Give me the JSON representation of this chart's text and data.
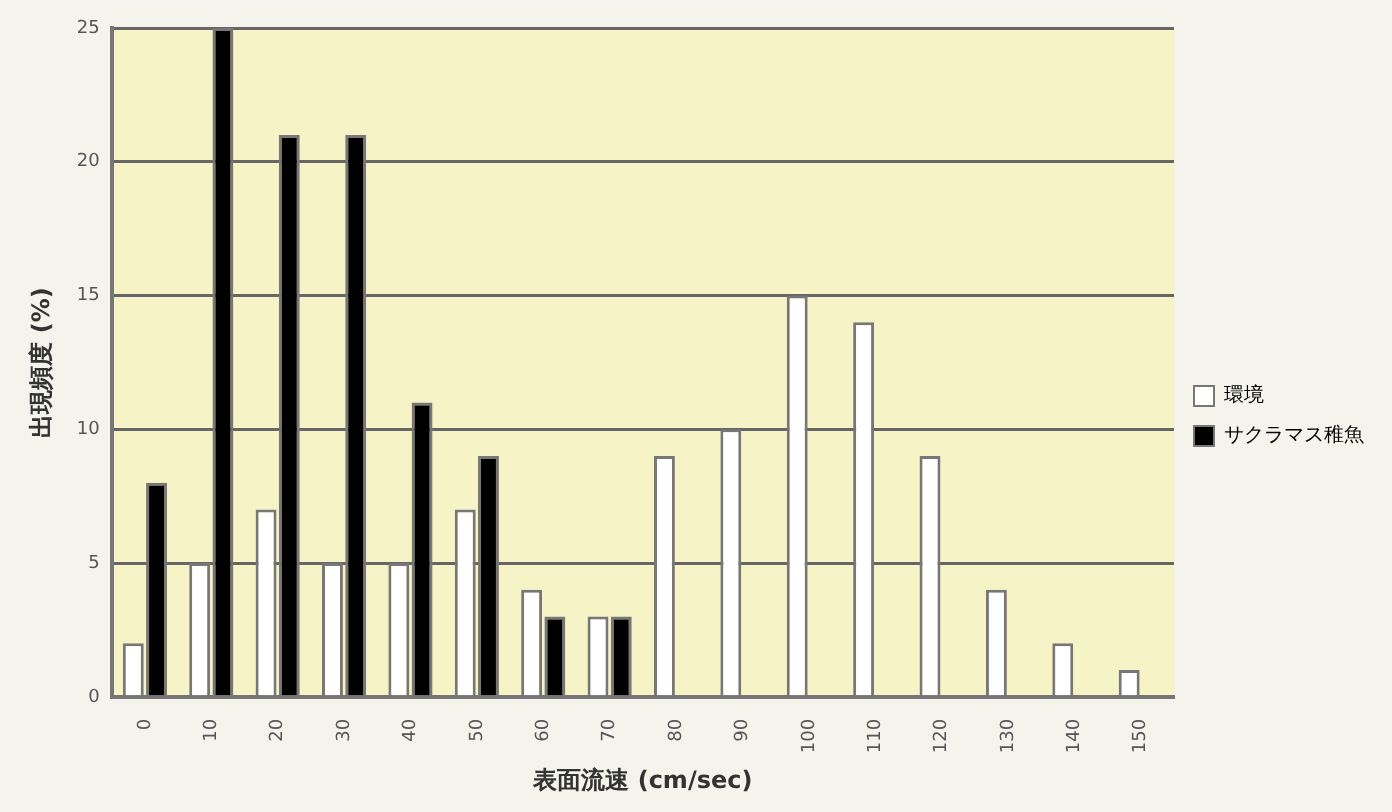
{
  "chart_data": {
    "type": "bar",
    "xlabel": "表面流速 (cm/sec)",
    "ylabel": "出現頻度 (%)",
    "categories": [
      "0",
      "10",
      "20",
      "30",
      "40",
      "50",
      "60",
      "70",
      "80",
      "90",
      "100",
      "110",
      "120",
      "130",
      "140",
      "150"
    ],
    "series": [
      {
        "name": "環境",
        "color": "#ffffff",
        "values": [
          2,
          5,
          7,
          5,
          5,
          7,
          4,
          3,
          9,
          10,
          15,
          14,
          9,
          4,
          2,
          1
        ]
      },
      {
        "name": "サクラマス稚魚",
        "color": "#000000",
        "values": [
          8,
          25,
          21,
          21,
          11,
          9,
          3,
          3,
          0,
          0,
          0,
          0,
          0,
          0,
          0,
          0
        ]
      }
    ],
    "ylim": [
      0,
      25
    ],
    "yticks": [
      0,
      5,
      10,
      15,
      20,
      25
    ],
    "grid": "y",
    "legend": "right"
  }
}
